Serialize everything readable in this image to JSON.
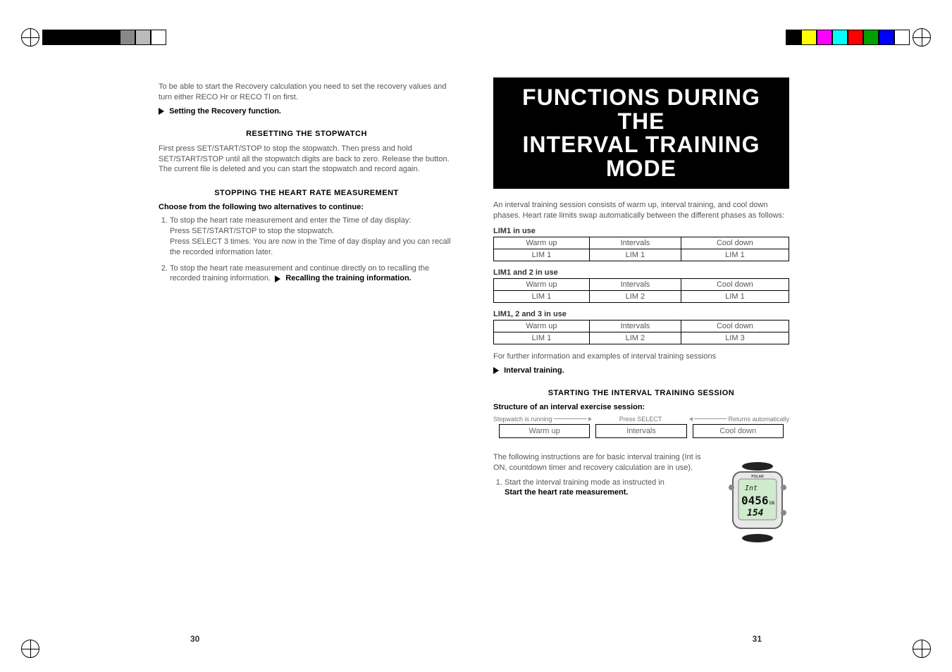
{
  "print_bars": {
    "left_colors": [
      "#000000",
      "#000000",
      "#000000",
      "#000000",
      "#000000",
      "#888888",
      "#bbbbbb",
      "#ffffff"
    ],
    "right_colors": [
      "#000000",
      "#ffff00",
      "#ff00ff",
      "#00ffff",
      "#ff0000",
      "#00a000",
      "#0000ff",
      "#ffffff"
    ]
  },
  "left_page": {
    "intro": "To be able to start the Recovery calculation you need to set the recovery values and turn either RECO Hr or RECO Tl on first.",
    "xref1": "Setting the Recovery function.",
    "sec_reset": "RESETTING THE STOPWATCH",
    "reset_body": "First press SET/START/STOP to stop the stopwatch. Then press and hold SET/START/STOP until all the stopwatch digits are back to zero. Release the button. The current file is deleted and you can start the stopwatch and record again.",
    "sec_stop": "STOPPING THE HEART RATE MEASUREMENT",
    "choose": "Choose from the following two alternatives to continue:",
    "step1a": "To stop the heart rate measurement and enter the Time of day display:",
    "step1b": "Press SET/START/STOP to stop the stopwatch.",
    "step1c": "Press SELECT 3 times. You are now in the Time of day display and you can recall the recorded information later.",
    "step2a": "To stop the heart rate measurement and continue directly on to recalling the recorded training information.",
    "xref2": "Recalling the training information.",
    "page_num": "30"
  },
  "right_page": {
    "banner_l1": "FUNCTIONS DURING THE",
    "banner_l2": "INTERVAL TRAINING MODE",
    "intro": "An interval training session consists of warm up, interval training, and cool down phases. Heart rate limits swap automatically between the different phases as follows:",
    "lim_headers": {
      "a": "Warm up",
      "b": "Intervals",
      "c": "Cool down"
    },
    "lim1": {
      "label": "LIM1 in use",
      "a": "LIM 1",
      "b": "LIM 1",
      "c": "LIM 1"
    },
    "lim12": {
      "label": "LIM1 and 2 in use",
      "a": "LIM 1",
      "b": "LIM 2",
      "c": "LIM 1"
    },
    "lim123": {
      "label": "LIM1, 2 and 3 in use",
      "a": "LIM 1",
      "b": "LIM 2",
      "c": "LIM 3"
    },
    "further": "For further information and examples of interval training sessions",
    "xref_interval": "Interval training.",
    "sec_start": "STARTING THE INTERVAL TRAINING SESSION",
    "structure_head": "Structure of an interval exercise session:",
    "arrows": {
      "a": "Stopwatch is running",
      "b": "Press SELECT",
      "c": "Returns automatically"
    },
    "struct": {
      "a": "Warm up",
      "b": "Intervals",
      "c": "Cool down"
    },
    "following": "The following instructions are for basic interval training (Int is ON, countdown timer and recovery calculation are in use).",
    "step1": "Start the interval training mode as instructed in",
    "xref_start": "Start the heart rate measurement.",
    "page_num": "31",
    "watch": {
      "brand": "POLAR",
      "line1": "Int",
      "line2": "0456",
      "unit": "DB",
      "line3": "154"
    }
  }
}
